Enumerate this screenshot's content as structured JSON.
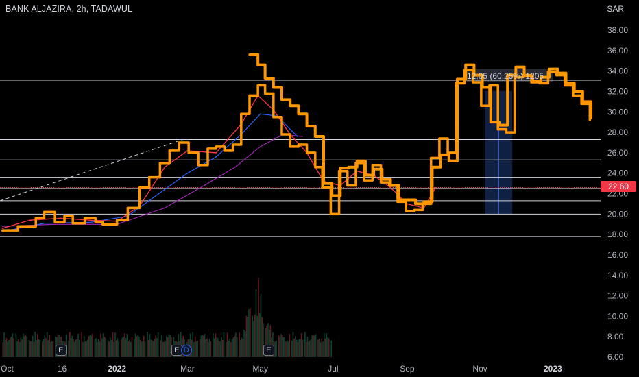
{
  "header": {
    "title": "BANK ALJAZIRA, 2h, TADAWUL",
    "currency": "SAR"
  },
  "last_price": "22.60",
  "measure": {
    "label": "12.05 (60.25%) 1205"
  },
  "markers": [
    {
      "type": "E",
      "date": "Nov 15"
    },
    {
      "type": "E",
      "date": "Feb 20"
    },
    {
      "type": "D",
      "date": "Feb 28"
    },
    {
      "type": "E",
      "date": "May 8"
    }
  ],
  "colors": {
    "price": "#ff9800",
    "ma_red": "#f23645",
    "ma_blue": "#2962ff",
    "ma_purple": "#9c27b0",
    "measure_fill": "#1e3a7a",
    "hline": "#d1d4dc",
    "last_line": "#f23645"
  },
  "chart_data": {
    "type": "line",
    "title": "BANK ALJAZIRA, 2h, TADAWUL",
    "ylabel": "SAR",
    "ylim": [
      6,
      39
    ],
    "y_ticks": [
      "6.00",
      "8.00",
      "10.00",
      "12.00",
      "14.00",
      "16.00",
      "18.00",
      "20.00",
      "22.00",
      "24.00",
      "26.00",
      "28.00",
      "30.00",
      "32.00",
      "34.00",
      "36.00",
      "38.00"
    ],
    "x_ticks": [
      {
        "label": "Oct",
        "date": "2021-10-01",
        "bold": false
      },
      {
        "label": "16",
        "date": "2021-11-16",
        "bold": false
      },
      {
        "label": "2022",
        "date": "2022-01-01",
        "bold": true
      },
      {
        "label": "Mar",
        "date": "2022-03-01",
        "bold": false
      },
      {
        "label": "May",
        "date": "2022-05-01",
        "bold": false
      },
      {
        "label": "Jul",
        "date": "2022-07-01",
        "bold": false
      },
      {
        "label": "Sep",
        "date": "2022-09-01",
        "bold": false
      },
      {
        "label": "Nov",
        "date": "2022-11-01",
        "bold": false
      },
      {
        "label": "2023",
        "date": "2023-01-01",
        "bold": true
      }
    ],
    "x_range": [
      "2021-09-25",
      "2023-02-10"
    ],
    "horizontal_levels": [
      33.1,
      27.3,
      25.3,
      23.6,
      21.3,
      20.0,
      17.8
    ],
    "last_price_level": 22.6,
    "trendline": {
      "start": [
        "2021-09-25",
        21.3
      ],
      "end": [
        "2022-02-25",
        27.3
      ]
    },
    "measure_range": {
      "from": [
        "2022-11-05",
        20.0
      ],
      "to": [
        "2022-11-28",
        32.05
      ]
    },
    "series": [
      {
        "name": "Price",
        "x": [
          "2021-09-27",
          "2021-10-10",
          "2021-10-25",
          "2021-11-01",
          "2021-11-10",
          "2021-11-18",
          "2021-11-25",
          "2021-12-05",
          "2021-12-14",
          "2021-12-20",
          "2022-01-01",
          "2022-01-10",
          "2022-01-20",
          "2022-01-28",
          "2022-02-06",
          "2022-02-14",
          "2022-02-22",
          "2022-03-02",
          "2022-03-10",
          "2022-03-18",
          "2022-03-25",
          "2022-04-01",
          "2022-04-08",
          "2022-04-15",
          "2022-04-22",
          "2022-04-29",
          "2022-05-05",
          "2022-05-12",
          "2022-05-19",
          "2022-05-26",
          "2022-06-02",
          "2022-06-09",
          "2022-06-16",
          "2022-06-22",
          "2022-06-29",
          "2022-07-06",
          "2022-07-13",
          "2022-07-20",
          "2022-07-27",
          "2022-08-03",
          "2022-08-10",
          "2022-08-17",
          "2022-08-24",
          "2022-08-31",
          "2022-09-07",
          "2022-09-14",
          "2022-09-21",
          "2022-09-28",
          "2022-10-05",
          "2022-10-12",
          "2022-10-19",
          "2022-10-26",
          "2022-11-02",
          "2022-11-09",
          "2022-11-16",
          "2022-11-23",
          "2022-11-30",
          "2022-12-07",
          "2022-12-14",
          "2022-12-21",
          "2022-12-28",
          "2023-01-04",
          "2023-01-11",
          "2023-01-18",
          "2023-01-25",
          "2023-02-01"
        ],
        "values": [
          18.4,
          18.8,
          19.6,
          20.2,
          19.2,
          19.8,
          19.1,
          19.6,
          19.2,
          19.0,
          19.4,
          20.6,
          22.6,
          23.6,
          25.0,
          26.2,
          27.0,
          26.0,
          24.8,
          26.4,
          26.6,
          26.2,
          26.8,
          29.8,
          31.6,
          32.6,
          31.8,
          29.5,
          27.8,
          26.6,
          26.8,
          26.0,
          24.6,
          22.6,
          20.0,
          24.2,
          22.8,
          25.0,
          23.3,
          24.8,
          23.1,
          22.8,
          21.2,
          20.3,
          20.4,
          21.0,
          25.5,
          27.4,
          26.0,
          32.8,
          34.1,
          32.9,
          30.6,
          32.6,
          28.3,
          28.0,
          33.4,
          33.6,
          32.9,
          32.8,
          33.9,
          33.6,
          32.6,
          31.6,
          30.8,
          29.2
        ]
      },
      {
        "name": "Price (upper)",
        "x": [
          "2022-04-22",
          "2022-04-29",
          "2022-05-05",
          "2022-05-12",
          "2022-05-19",
          "2022-05-26",
          "2022-06-02",
          "2022-06-09",
          "2022-06-16",
          "2022-06-23",
          "2022-06-30",
          "2022-07-07",
          "2022-07-14",
          "2022-07-21",
          "2022-07-28",
          "2022-08-04",
          "2022-08-11",
          "2022-08-18",
          "2022-08-25",
          "2022-09-01",
          "2022-09-08",
          "2022-09-15",
          "2022-09-22",
          "2022-09-29",
          "2022-10-06",
          "2022-10-13",
          "2022-10-20",
          "2022-10-27",
          "2022-11-03",
          "2022-11-10",
          "2022-11-17",
          "2022-11-24",
          "2022-12-01",
          "2022-12-08",
          "2022-12-15",
          "2022-12-22",
          "2022-12-29",
          "2023-01-05",
          "2023-01-12",
          "2023-01-19",
          "2023-01-26",
          "2023-02-02"
        ],
        "values": [
          35.6,
          34.6,
          33.3,
          32.4,
          31.2,
          30.6,
          29.8,
          28.6,
          27.6,
          23.0,
          21.8,
          24.5,
          24.6,
          25.2,
          23.8,
          24.4,
          23.4,
          22.8,
          21.4,
          21.4,
          21.0,
          21.2,
          24.6,
          25.8,
          25.2,
          33.2,
          34.6,
          33.6,
          32.4,
          29.0,
          28.7,
          33.6,
          34.4,
          33.5,
          33.0,
          33.4,
          34.2,
          33.8,
          32.8,
          32.0,
          31.0,
          29.4
        ]
      },
      {
        "name": "MA fast",
        "x": [
          "2021-09-27",
          "2021-10-20",
          "2021-11-15",
          "2021-12-10",
          "2022-01-01",
          "2022-01-20",
          "2022-02-10",
          "2022-03-01",
          "2022-03-25",
          "2022-04-15",
          "2022-04-29",
          "2022-05-12",
          "2022-05-26",
          "2022-06-09",
          "2022-06-23",
          "2022-07-07",
          "2022-07-21",
          "2022-08-04",
          "2022-08-18",
          "2022-09-01",
          "2022-09-15",
          "2022-09-25"
        ],
        "values": [
          18.6,
          19.4,
          19.6,
          19.4,
          19.3,
          20.8,
          24.6,
          26.2,
          26.0,
          28.8,
          31.6,
          30.2,
          27.8,
          26.0,
          23.2,
          22.8,
          24.2,
          23.8,
          22.6,
          21.0,
          20.6,
          22.6
        ]
      },
      {
        "name": "MA medium",
        "x": [
          "2021-09-27",
          "2021-11-01",
          "2021-12-10",
          "2022-01-10",
          "2022-02-05",
          "2022-03-01",
          "2022-03-25",
          "2022-04-15",
          "2022-05-01",
          "2022-05-15",
          "2022-06-01"
        ],
        "values": [
          18.3,
          19.1,
          19.2,
          19.8,
          22.0,
          24.0,
          25.6,
          27.8,
          29.8,
          29.6,
          27.6
        ]
      },
      {
        "name": "MA slow",
        "x": [
          "2021-09-27",
          "2021-11-10",
          "2022-01-01",
          "2022-02-10",
          "2022-03-15",
          "2022-04-10",
          "2022-05-01",
          "2022-05-20",
          "2022-06-05"
        ],
        "values": [
          18.8,
          19.0,
          19.0,
          20.6,
          22.8,
          24.6,
          26.6,
          27.8,
          27.6
        ]
      }
    ],
    "volume": {
      "x_range": [
        "2021-09-27",
        "2022-06-30"
      ],
      "peak_date": "2022-04-28",
      "peak_value": 14.0,
      "base_level": 6.0
    }
  }
}
